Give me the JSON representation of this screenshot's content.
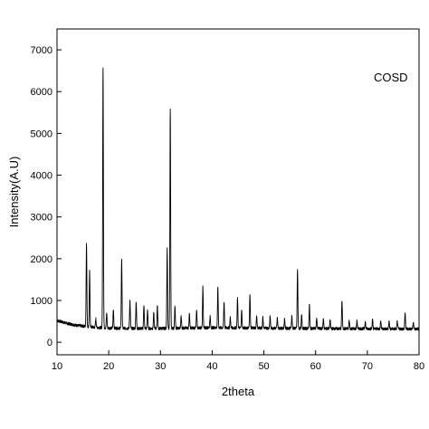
{
  "chart_data": {
    "type": "line",
    "title": "",
    "xlabel": "2theta",
    "ylabel": "Intensity(A.U)",
    "xlim": [
      10,
      80
    ],
    "ylim": [
      -300,
      7500
    ],
    "xticks": [
      10,
      20,
      30,
      40,
      50,
      60,
      70,
      80
    ],
    "yticks": [
      0,
      1000,
      2000,
      3000,
      4000,
      5000,
      6000,
      7000
    ],
    "grid": false,
    "legend": {
      "text": "COSD",
      "placement": "top-right"
    },
    "series": [
      {
        "color": "#000000",
        "baseline": [
          [
            10,
            520
          ],
          [
            12,
            450
          ],
          [
            14,
            400
          ],
          [
            17,
            360
          ],
          [
            20,
            340
          ],
          [
            25,
            330
          ],
          [
            30,
            330
          ],
          [
            35,
            340
          ],
          [
            40,
            350
          ],
          [
            45,
            345
          ],
          [
            50,
            340
          ],
          [
            55,
            335
          ],
          [
            60,
            330
          ],
          [
            65,
            325
          ],
          [
            70,
            325
          ],
          [
            75,
            320
          ],
          [
            80,
            320
          ]
        ],
        "peaks": [
          [
            15.7,
            2380
          ],
          [
            16.3,
            1700
          ],
          [
            17.5,
            560
          ],
          [
            18.9,
            6600
          ],
          [
            19.6,
            700
          ],
          [
            20.9,
            780
          ],
          [
            22.5,
            2000
          ],
          [
            24.1,
            1000
          ],
          [
            25.3,
            980
          ],
          [
            26.8,
            900
          ],
          [
            27.5,
            780
          ],
          [
            28.7,
            700
          ],
          [
            29.4,
            880
          ],
          [
            31.3,
            2230
          ],
          [
            31.9,
            5600
          ],
          [
            32.8,
            880
          ],
          [
            34.0,
            640
          ],
          [
            35.6,
            680
          ],
          [
            37.0,
            760
          ],
          [
            38.2,
            1320
          ],
          [
            39.6,
            620
          ],
          [
            41.1,
            1300
          ],
          [
            42.3,
            980
          ],
          [
            43.5,
            600
          ],
          [
            44.9,
            1050
          ],
          [
            45.7,
            760
          ],
          [
            47.3,
            1150
          ],
          [
            48.6,
            620
          ],
          [
            49.8,
            600
          ],
          [
            51.2,
            620
          ],
          [
            52.6,
            580
          ],
          [
            54.0,
            560
          ],
          [
            55.4,
            640
          ],
          [
            56.5,
            1730
          ],
          [
            57.3,
            650
          ],
          [
            58.8,
            900
          ],
          [
            60.2,
            580
          ],
          [
            61.5,
            560
          ],
          [
            62.8,
            540
          ],
          [
            65.1,
            1000
          ],
          [
            66.5,
            520
          ],
          [
            68.0,
            520
          ],
          [
            69.6,
            500
          ],
          [
            71.0,
            540
          ],
          [
            72.6,
            520
          ],
          [
            74.2,
            500
          ],
          [
            75.8,
            500
          ],
          [
            77.3,
            700
          ],
          [
            78.9,
            480
          ]
        ]
      }
    ]
  }
}
